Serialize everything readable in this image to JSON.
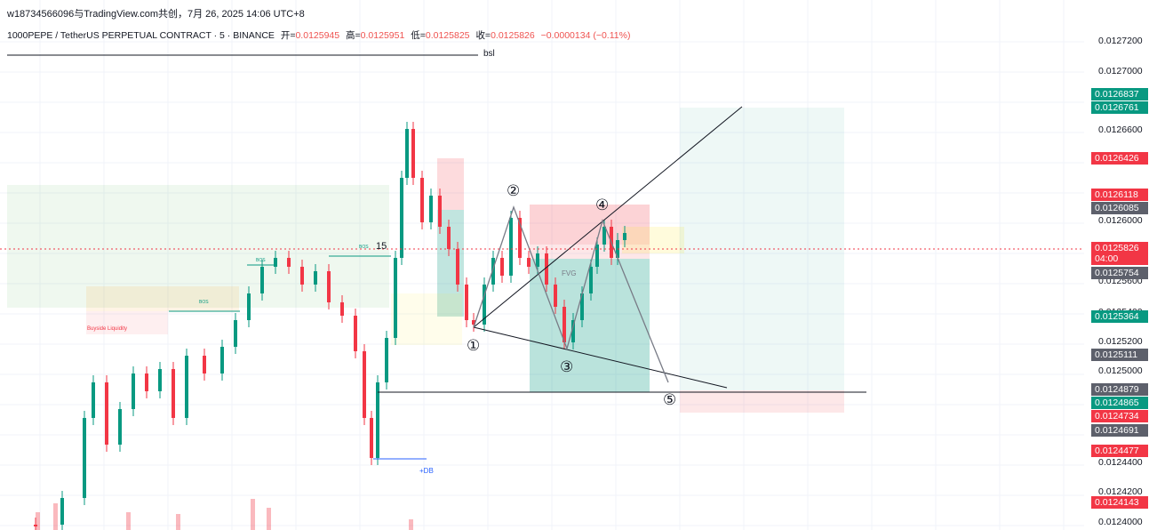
{
  "header": {
    "watermark": "w18734566096与TradingView.com共创，7月 26, 2025 14:06 UTC+8",
    "symbol_line": "1000PEPE / TetherUS PERPETUAL CONTRACT · 5 · BINANCE",
    "open_label": "开=",
    "open_value": "0.0125945",
    "high_label": "高=",
    "high_value": "0.0125951",
    "low_label": "低=",
    "low_value": "0.0125825",
    "close_label": "收=",
    "close_value": "0.0125826",
    "change_value": "−0.0000134 (−0.11%)"
  },
  "chart_data": {
    "type": "candlestick",
    "symbol": "1000PEPE / TetherUS PERPETUAL CONTRACT",
    "timeframe": "5",
    "exchange": "BINANCE",
    "ylim": [
      0.0124,
      0.01273
    ],
    "y_ticks": [
      "0.0127200",
      "0.0127000",
      "0.0126600",
      "0.0126000",
      "0.0125600",
      "0.0125400",
      "0.0125200",
      "0.0125000",
      "0.0124400",
      "0.0124200",
      "0.0124000"
    ],
    "price_tags": [
      {
        "value": "0.0126837",
        "color": "#089981"
      },
      {
        "value": "0.0126761",
        "color": "#089981"
      },
      {
        "value": "0.0126426",
        "color": "#f23645"
      },
      {
        "value": "0.0126118",
        "color": "#f23645"
      },
      {
        "value": "0.0126085",
        "color": "#5d606b"
      },
      {
        "value": "0.0125826",
        "color": "#f23645"
      },
      {
        "value": "04:00",
        "color": "#f23645"
      },
      {
        "value": "0.0125754",
        "color": "#5d606b"
      },
      {
        "value": "0.0125364",
        "color": "#089981"
      },
      {
        "value": "0.0125111",
        "color": "#5d606b"
      },
      {
        "value": "0.0124879",
        "color": "#5d606b"
      },
      {
        "value": "0.0124865",
        "color": "#089981"
      },
      {
        "value": "0.0124734",
        "color": "#f23645"
      },
      {
        "value": "0.0124691",
        "color": "#5d606b"
      },
      {
        "value": "0.0124477",
        "color": "#f23645"
      },
      {
        "value": "0.0124143",
        "color": "#f23645"
      }
    ],
    "annotations": {
      "bsl": "bsl",
      "n15": "15",
      "buyside_liquidity": "Buyside Liquidity",
      "bos1": "BOS",
      "bos2": "BOS",
      "bos3": "BOS",
      "fvg": "FVG",
      "db": "+DB",
      "wave_labels": [
        "①",
        "②",
        "③",
        "④",
        "⑤"
      ]
    },
    "colors": {
      "up": "#089981",
      "down": "#f23645"
    }
  }
}
